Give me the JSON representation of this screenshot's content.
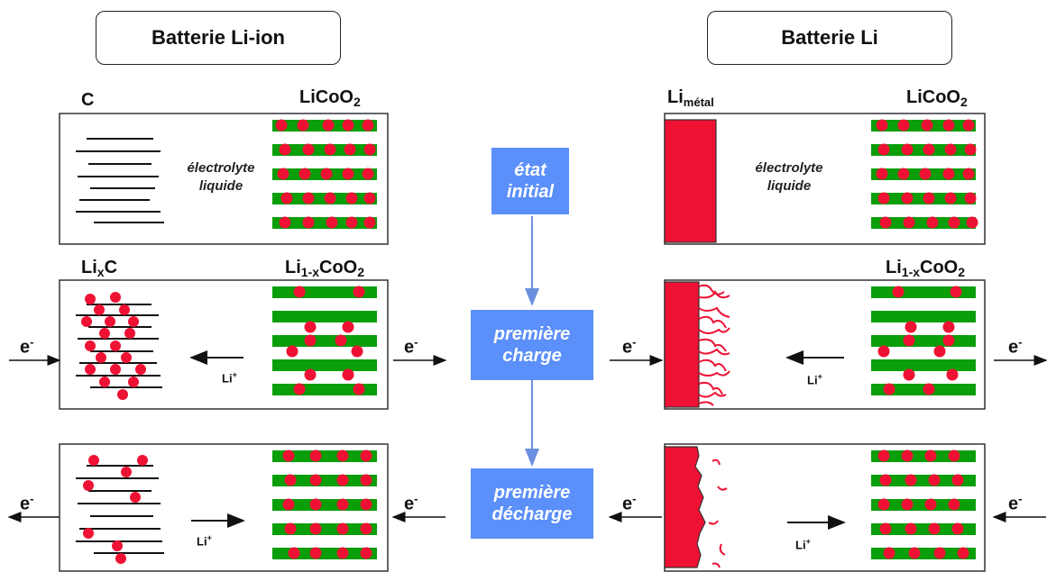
{
  "left_title": "Batterie Li-ion",
  "right_title": "Batterie Li",
  "steps": {
    "initial": [
      "état",
      "initial"
    ],
    "charge": [
      "première",
      "charge"
    ],
    "discharge": [
      "première",
      "décharge"
    ]
  },
  "labels": {
    "carbon": "C",
    "licoo2_left": "LiCoO",
    "licoo2_right": "LiCoO",
    "licoo2_sub": "2",
    "lixc_main": "Li",
    "lixc_sub": "x",
    "lixc_end": "C",
    "li1x_main": "Li",
    "li1x_sub": "1-x",
    "li1x_co": "CoO",
    "li1x_sub2": "2",
    "limetal_main": "Li",
    "limetal_sub": "métal",
    "electrolyte_1": "électrolyte",
    "electrolyte_2": "liquide",
    "electron": "e",
    "electron_sup": "-",
    "li_ion": "Li",
    "li_ion_sup": "+"
  },
  "colors": {
    "green_layer": "#0a9e0a",
    "red_ion": "#ee1133",
    "step_box": "#5b8ff9",
    "flow_arrow": "#6b8fe0"
  }
}
